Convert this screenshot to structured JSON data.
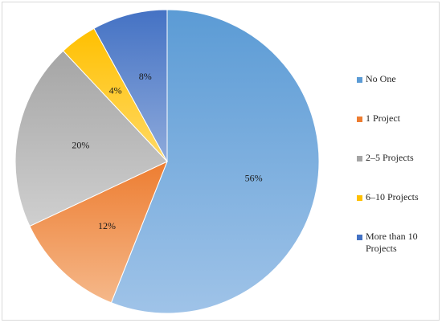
{
  "chart_data": {
    "type": "pie",
    "title": "",
    "start_angle_deg": 0,
    "direction": "clockwise",
    "legend_position": "right",
    "slices": [
      {
        "name": "No One",
        "value": 56,
        "label": "56%",
        "color_light": "#9fc3e8",
        "color_dark": "#5b9bd5"
      },
      {
        "name": "1 Project",
        "value": 12,
        "label": "12%",
        "color_light": "#f5b88a",
        "color_dark": "#ed7d31"
      },
      {
        "name": "2–5 Projects",
        "value": 20,
        "label": "20%",
        "color_light": "#cfcfcf",
        "color_dark": "#a5a5a5"
      },
      {
        "name": "6–10 Projects",
        "value": 4,
        "label": "4%",
        "color_light": "#ffd966",
        "color_dark": "#ffc000"
      },
      {
        "name": "More than 10 Projects",
        "value": 8,
        "label": "8%",
        "color_light": "#8eaadb",
        "color_dark": "#4472c4"
      }
    ]
  }
}
